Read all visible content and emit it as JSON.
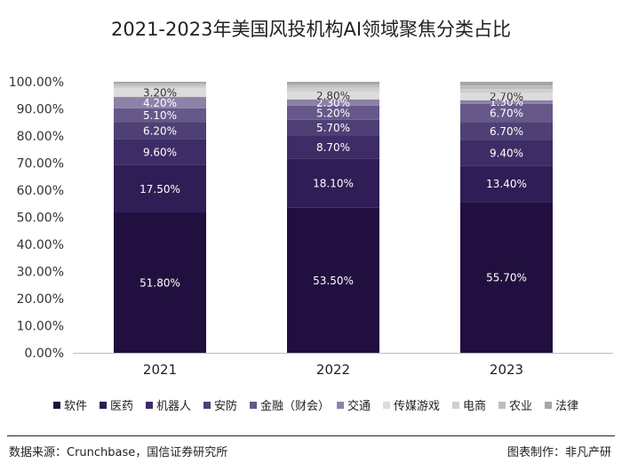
{
  "chart_data": {
    "type": "bar",
    "stacked": true,
    "title": "2021-2023年美国风投机构AI领域聚焦分类占比",
    "xlabel": "",
    "ylabel": "",
    "ylim": [
      0,
      100
    ],
    "y_ticks": [
      "0.00%",
      "10.00%",
      "20.00%",
      "30.00%",
      "40.00%",
      "50.00%",
      "60.00%",
      "70.00%",
      "80.00%",
      "90.00%",
      "100.00%"
    ],
    "categories": [
      "2021",
      "2022",
      "2023"
    ],
    "legend_position": "bottom",
    "series": [
      {
        "name": "软件",
        "color": "#21103f",
        "values": [
          51.8,
          53.5,
          55.7
        ],
        "labels": [
          "51.80%",
          "53.50%",
          "55.70%"
        ]
      },
      {
        "name": "医药",
        "color": "#2f1d55",
        "values": [
          17.5,
          18.1,
          13.4
        ],
        "labels": [
          "17.50%",
          "18.10%",
          "13.40%"
        ]
      },
      {
        "name": "机器人",
        "color": "#3e2c66",
        "values": [
          9.6,
          8.7,
          9.4
        ],
        "labels": [
          "9.60%",
          "8.70%",
          "9.40%"
        ]
      },
      {
        "name": "安防",
        "color": "#4e4074",
        "values": [
          6.2,
          5.7,
          6.7
        ],
        "labels": [
          "6.20%",
          "5.70%",
          "6.70%"
        ]
      },
      {
        "name": "金融（财会）",
        "color": "#66598a",
        "values": [
          5.1,
          5.2,
          6.7
        ],
        "labels": [
          "5.10%",
          "5.20%",
          "6.70%"
        ]
      },
      {
        "name": "交通",
        "color": "#8c82a8",
        "values": [
          4.2,
          2.3,
          1.3
        ],
        "labels": [
          "4.20%",
          "2.30%",
          "1.30%"
        ]
      },
      {
        "name": "传媒游戏",
        "color": "#dcdcdc",
        "values": [
          3.2,
          2.8,
          2.7
        ],
        "labels": [
          "3.20%",
          "2.80%",
          "2.70%"
        ]
      },
      {
        "name": "电商",
        "color": "#cfcfcf",
        "values": [
          0.9,
          1.5,
          1.4
        ],
        "labels": [
          "",
          "",
          ""
        ]
      },
      {
        "name": "农业",
        "color": "#bdbdbd",
        "values": [
          0.8,
          1.2,
          1.3
        ],
        "labels": [
          "",
          "",
          ""
        ]
      },
      {
        "name": "法律",
        "color": "#a6a6a6",
        "values": [
          0.7,
          1.0,
          1.4
        ],
        "labels": [
          "",
          "",
          ""
        ]
      }
    ]
  },
  "footer": {
    "source": "数据来源：Crunchbase，国信证券研究所",
    "credit": "图表制作：非凡产研"
  }
}
